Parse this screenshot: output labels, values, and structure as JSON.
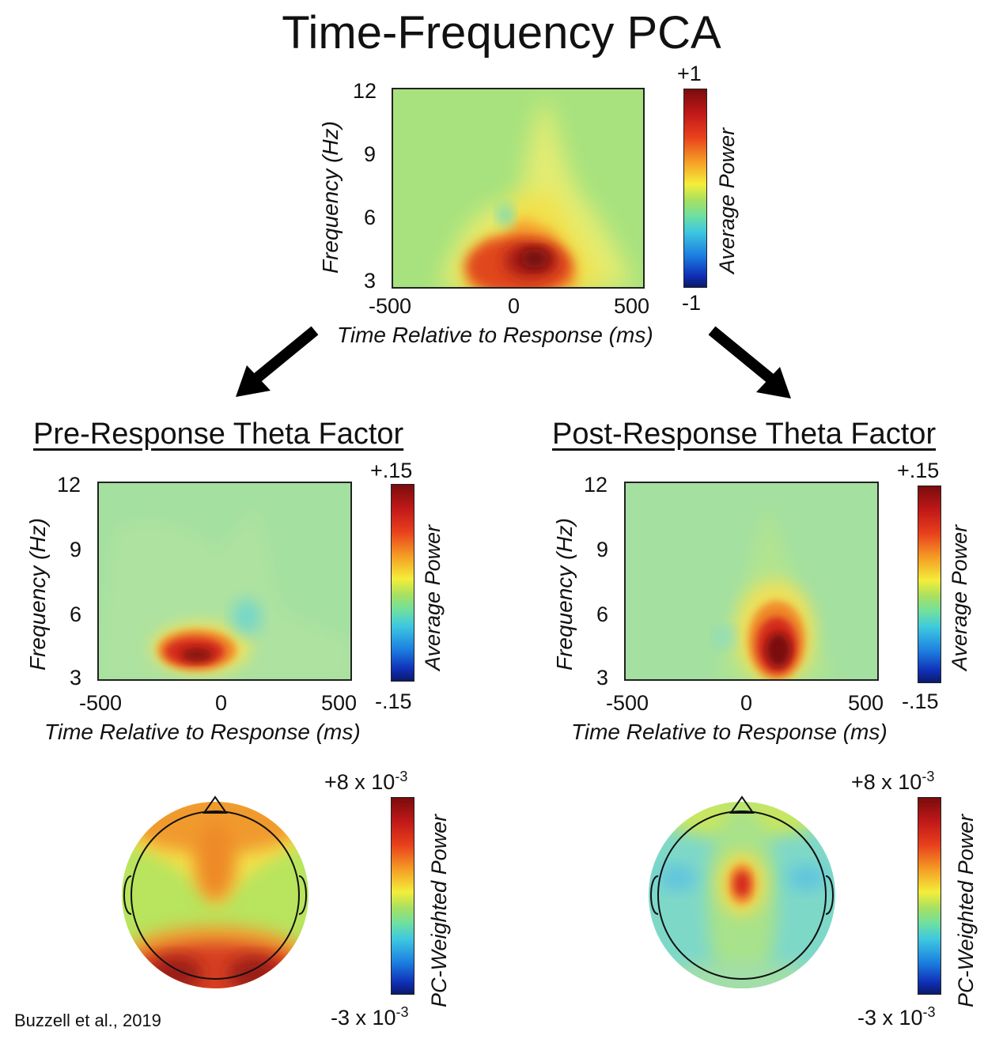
{
  "title": "Time-Frequency PCA",
  "footer": "Buzzell et al., 2019",
  "top": {
    "ylabel": "Frequency (Hz)",
    "xlabel": "Time Relative to Response (ms)",
    "yticks": [
      "12",
      "9",
      "6",
      "3"
    ],
    "xticks": [
      "-500",
      "0",
      "500"
    ],
    "colorbar_label": "Average Power",
    "colorbar_max": "+1",
    "colorbar_min": "-1"
  },
  "pre": {
    "heading": "Pre-Response Theta Factor",
    "ylabel": "Frequency (Hz)",
    "xlabel": "Time Relative to Response (ms)",
    "yticks": [
      "12",
      "9",
      "6",
      "3"
    ],
    "xticks": [
      "-500",
      "0",
      "500"
    ],
    "colorbar_label": "Average Power",
    "colorbar_max": "+.15",
    "colorbar_min": "-.15",
    "topo_label": "PC-Weighted Power",
    "topo_max_base": "+8 x 10",
    "topo_max_exp": "-3",
    "topo_min_base": "-3 x 10",
    "topo_min_exp": "-3"
  },
  "post": {
    "heading": "Post-Response Theta Factor",
    "ylabel": "Frequency (Hz)",
    "xlabel": "Time Relative to Response (ms)",
    "yticks": [
      "12",
      "9",
      "6",
      "3"
    ],
    "xticks": [
      "-500",
      "0",
      "500"
    ],
    "colorbar_label": "Average Power",
    "colorbar_max": "+.15",
    "colorbar_min": "-.15",
    "topo_label": "PC-Weighted Power",
    "topo_max_base": "+8 x 10",
    "topo_max_exp": "-3",
    "topo_min_base": "-3 x 10",
    "topo_min_exp": "-3"
  },
  "colors": {
    "background_green": "#9fe07a",
    "dark_red": "#7a1010",
    "red": "#d42a1e",
    "orange": "#f08a28",
    "yellow": "#f0e84a",
    "cyan": "#6ad4d8"
  }
}
